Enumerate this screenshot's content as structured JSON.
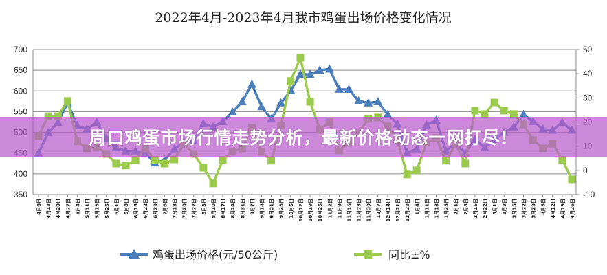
{
  "chart_data": {
    "type": "line",
    "title": "2022年4月-2023年4月我市鸡蛋出场价格变化情况",
    "categories": [
      "4月6日",
      "4月13日",
      "4月20日",
      "4月27日",
      "5月4日",
      "5月11日",
      "5月18日",
      "5月25日",
      "6月1日",
      "6月8日",
      "6月15日",
      "6月22日",
      "6月29日",
      "7月6日",
      "7月13日",
      "7月20日",
      "7月27日",
      "8月3日",
      "8月10日",
      "8月17日",
      "8月24日",
      "8月31日",
      "9月7日",
      "9月14日",
      "9月21日",
      "9月28日",
      "10月5日",
      "10月12日",
      "10月19日",
      "10月26日",
      "11月2日",
      "11月9日",
      "11月16日",
      "11月23日",
      "11月30日",
      "12月7日",
      "12月14日",
      "12月21日",
      "12月28日",
      "1月4日",
      "1月11日",
      "1月18日",
      "1月25日",
      "2月1日",
      "2月8日",
      "2月15日",
      "2月22日",
      "3月1日",
      "3月8日",
      "3月15日",
      "3月22日",
      "3月29日",
      "4月5日",
      "4月12日",
      "4月19日",
      "4月26日"
    ],
    "series": [
      {
        "name": "鸡蛋出场价格(元/50公斤)",
        "axis": "left",
        "color": "#4a7ebb",
        "marker": "triangle",
        "values": [
          450,
          499,
          524,
          571,
          516,
          508,
          524,
          485,
          463,
          455,
          455,
          450,
          426,
          433,
          460,
          476,
          480,
          521,
          513,
          526,
          549,
          574,
          616,
          562,
          532,
          571,
          601,
          640,
          640,
          650,
          653,
          604,
          604,
          576,
          571,
          574,
          543,
          520,
          451,
          460,
          518,
          529,
          455,
          474,
          450,
          483,
          463,
          483,
          500,
          513,
          543,
          526,
          508,
          505,
          524,
          505
        ]
      },
      {
        "name": "同比±%",
        "axis": "right",
        "color": "#9bcb4c",
        "marker": "square",
        "values": [
          14.2,
          22.4,
          22.4,
          28.7,
          12,
          9.1,
          9.7,
          6.8,
          2.8,
          2,
          4.3,
          9.1,
          4.3,
          2.8,
          4.5,
          11,
          6.8,
          1.1,
          -5.4,
          4.3,
          7.7,
          9,
          17.6,
          7.7,
          4,
          18.5,
          37,
          46.6,
          28.4,
          17,
          19.9,
          8.2,
          11.4,
          15.3,
          21.3,
          21.9,
          18.2,
          12.5,
          -1.7,
          0,
          11.4,
          13.4,
          4,
          11,
          2.8,
          24.7,
          23.3,
          28.1,
          24.7,
          23.3,
          19,
          12.5,
          9.1,
          11,
          4.3,
          -3.7
        ]
      }
    ],
    "y_left": {
      "min": 350,
      "max": 700,
      "step": 50
    },
    "y_right": {
      "min": -10,
      "max": 50,
      "step": 10
    },
    "grid": true,
    "legend": "bottom"
  },
  "banner": {
    "text": "周口鸡蛋市场行情走势分析，最新价格动态一网打尽！"
  }
}
